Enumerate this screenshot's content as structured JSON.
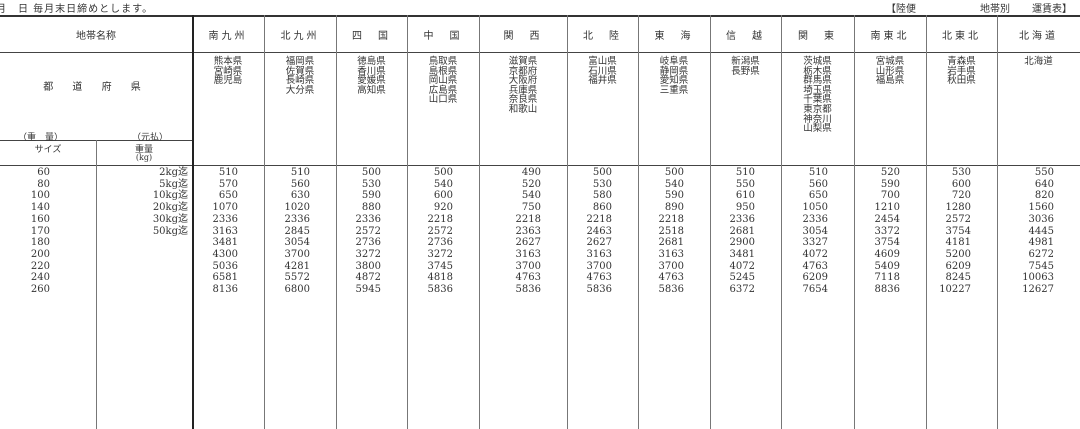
{
  "header": {
    "note": "月　日 毎月末日締めとします。",
    "title_part1": "【陸便",
    "title_part2": "地帯別",
    "title_part3": "運賃表】"
  },
  "table": {
    "zone_label": "地帯名称",
    "pref_label": "都 道 府 県",
    "weight_paren": "（重　量）",
    "paid_paren": "（元払）",
    "size_label": "サイズ",
    "weight_label": "重量",
    "kg_label": "(kg)",
    "sizes": [
      "60",
      "80",
      "100",
      "140",
      "160",
      "170",
      "180",
      "200",
      "220",
      "240",
      "260"
    ],
    "weights": [
      "2kg迄",
      "5kg迄",
      "10kg迄",
      "20kg迄",
      "30kg迄",
      "50kg迄"
    ],
    "regions": [
      {
        "name": "南九州",
        "prefs": [
          "熊本県",
          "宮崎県",
          "鹿児島"
        ],
        "rates": [
          "510",
          "570",
          "650",
          "1070",
          "2336",
          "3163",
          "3481",
          "4300",
          "5036",
          "6581",
          "8136"
        ]
      },
      {
        "name": "北九州",
        "prefs": [
          "福岡県",
          "佐賀県",
          "長崎県",
          "大分県"
        ],
        "rates": [
          "510",
          "560",
          "630",
          "1020",
          "2336",
          "2845",
          "3054",
          "3700",
          "4281",
          "5572",
          "6800"
        ]
      },
      {
        "name": "四　国",
        "prefs": [
          "徳島県",
          "香川県",
          "愛媛県",
          "高知県"
        ],
        "rates": [
          "500",
          "530",
          "590",
          "880",
          "2336",
          "2572",
          "2736",
          "3272",
          "3800",
          "4872",
          "5945"
        ]
      },
      {
        "name": "中　国",
        "prefs": [
          "鳥取県",
          "島根県",
          "岡山県",
          "広島県",
          "山口県"
        ],
        "rates": [
          "500",
          "540",
          "600",
          "920",
          "2218",
          "2572",
          "2736",
          "3272",
          "3745",
          "4818",
          "5836"
        ]
      },
      {
        "name": "関　西",
        "prefs": [
          "滋賀県",
          "京都府",
          "大阪府",
          "兵庫県",
          "奈良県",
          "和歌山"
        ],
        "rates": [
          "490",
          "520",
          "540",
          "750",
          "2218",
          "2363",
          "2627",
          "3163",
          "3700",
          "4763",
          "5836"
        ]
      },
      {
        "name": "北　陸",
        "prefs": [
          "富山県",
          "石川県",
          "福井県"
        ],
        "rates": [
          "500",
          "530",
          "580",
          "860",
          "2218",
          "2463",
          "2627",
          "3163",
          "3700",
          "4763",
          "5836"
        ]
      },
      {
        "name": "東　海",
        "prefs": [
          "岐阜県",
          "静岡県",
          "愛知県",
          "三重県"
        ],
        "rates": [
          "500",
          "540",
          "590",
          "890",
          "2218",
          "2518",
          "2681",
          "3163",
          "3700",
          "4763",
          "5836"
        ]
      },
      {
        "name": "信　越",
        "prefs": [
          "新潟県",
          "長野県"
        ],
        "rates": [
          "510",
          "550",
          "610",
          "950",
          "2336",
          "2681",
          "2900",
          "3481",
          "4072",
          "5245",
          "6372"
        ]
      },
      {
        "name": "関　東",
        "prefs": [
          "茨城県",
          "栃木県",
          "群馬県",
          "埼玉県",
          "千葉県",
          "東京都",
          "神奈川",
          "山梨県"
        ],
        "rates": [
          "510",
          "560",
          "650",
          "1050",
          "2336",
          "3054",
          "3327",
          "4072",
          "4763",
          "6209",
          "7654"
        ]
      },
      {
        "name": "南東北",
        "prefs": [
          "宮城県",
          "山形県",
          "福島県"
        ],
        "rates": [
          "520",
          "590",
          "700",
          "1210",
          "2454",
          "3372",
          "3754",
          "4609",
          "5409",
          "7118",
          "8836"
        ]
      },
      {
        "name": "北東北",
        "prefs": [
          "青森県",
          "岩手県",
          "秋田県"
        ],
        "rates": [
          "530",
          "600",
          "720",
          "1280",
          "2572",
          "3754",
          "4181",
          "5200",
          "6209",
          "8245",
          "10227"
        ]
      },
      {
        "name": "北海道",
        "prefs": [
          "北海道"
        ],
        "rates": [
          "550",
          "640",
          "820",
          "1560",
          "3036",
          "4445",
          "4981",
          "6272",
          "7545",
          "10063",
          "12627"
        ]
      }
    ]
  }
}
